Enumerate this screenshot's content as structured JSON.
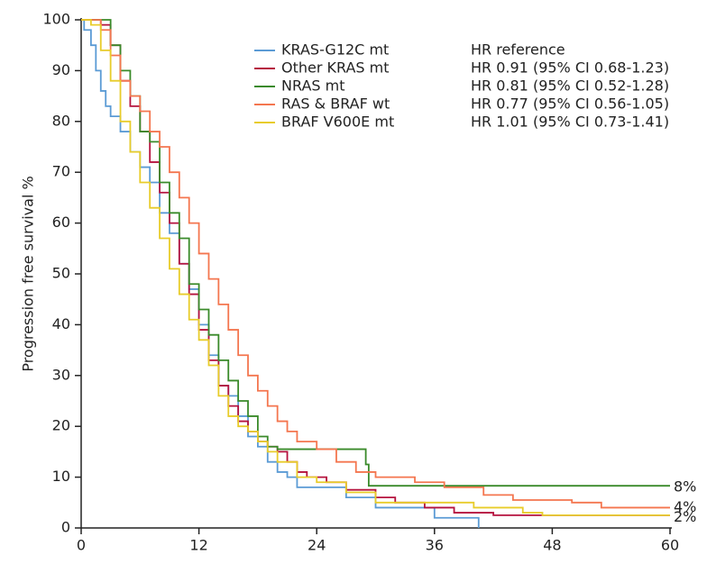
{
  "chart_data": {
    "type": "step",
    "ylabel": "Progression free survival %",
    "xlim": [
      0,
      60
    ],
    "xticks": [
      0,
      12,
      24,
      36,
      48,
      60
    ],
    "ylim": [
      0,
      100
    ],
    "yticks": [
      0,
      10,
      20,
      30,
      40,
      50,
      60,
      70,
      80,
      90,
      100
    ],
    "annotations": [
      "HR reference",
      "HR 0.91 (95% CI 0.68-1.23)",
      "HR 0.81 (95% CI 0.52-1.28)",
      "HR 0.77 (95% CI 0.56-1.05)",
      "HR 1.01 (95% CI 0.73-1.41)"
    ],
    "end_labels": [
      {
        "value": 8,
        "label": "8%"
      },
      {
        "value": 4,
        "label": "4%"
      },
      {
        "value": 2,
        "label": "2%"
      }
    ],
    "series": [
      {
        "name": "KRAS-G12C mt",
        "color": "#5b9bd5",
        "x": [
          0,
          0.3,
          1,
          1.5,
          2,
          2.5,
          3,
          4,
          5,
          6,
          7,
          8,
          9,
          10,
          11,
          12,
          13,
          14,
          15,
          16,
          17,
          18,
          19,
          20,
          21,
          22,
          27,
          30,
          36,
          40.5
        ],
        "values": [
          100,
          98,
          95,
          90,
          86,
          83,
          81,
          78,
          74,
          71,
          68,
          62,
          58,
          52,
          47,
          40,
          34,
          28,
          26,
          22,
          18,
          16,
          13,
          11,
          10,
          8,
          6,
          4,
          2,
          0
        ]
      },
      {
        "name": "Other KRAS mt",
        "color": "#b5123e",
        "x": [
          0,
          2,
          3,
          4,
          5,
          6,
          7,
          8,
          9,
          10,
          11,
          12,
          13,
          14,
          15,
          16,
          17,
          18,
          19,
          20,
          21,
          22,
          23,
          25,
          27,
          30,
          32,
          35,
          38,
          42,
          60
        ],
        "values": [
          100,
          99,
          95,
          88,
          83,
          78,
          72,
          66,
          60,
          52,
          46,
          39,
          33,
          28,
          24,
          21,
          19,
          17,
          16,
          15,
          13,
          11,
          10,
          9,
          7.5,
          6,
          5,
          4,
          3,
          2.5,
          2.5
        ]
      },
      {
        "name": "NRAS mt",
        "color": "#3a8a2a",
        "x": [
          0,
          3,
          4,
          5,
          6,
          7,
          8,
          9,
          10,
          11,
          12,
          13,
          14,
          15,
          16,
          17,
          18,
          19,
          20,
          29,
          29.3,
          60
        ],
        "values": [
          100,
          95,
          90,
          85,
          78,
          76,
          68,
          62,
          57,
          48,
          43,
          38,
          33,
          29,
          25,
          22,
          18,
          16,
          15.5,
          12.5,
          8.3,
          8.3
        ]
      },
      {
        "name": "RAS & BRAF wt",
        "color": "#f4764f",
        "x": [
          0,
          2,
          3,
          4,
          5,
          6,
          7,
          8,
          9,
          10,
          11,
          12,
          13,
          14,
          15,
          16,
          17,
          18,
          19,
          20,
          21,
          22,
          24,
          26,
          28,
          30,
          34,
          37,
          41,
          44,
          50,
          53,
          60
        ],
        "values": [
          100,
          98,
          93,
          88,
          85,
          82,
          78,
          75,
          70,
          65,
          60,
          54,
          49,
          44,
          39,
          34,
          30,
          27,
          24,
          21,
          19,
          17,
          15.5,
          13,
          11,
          10,
          9,
          8,
          6.5,
          5.5,
          5,
          4,
          4
        ]
      },
      {
        "name": "BRAF V600E mt",
        "color": "#e8cc2a",
        "x": [
          0,
          1,
          2,
          3,
          4,
          5,
          6,
          7,
          8,
          9,
          10,
          11,
          12,
          13,
          14,
          15,
          16,
          17,
          18,
          19,
          20,
          22,
          24,
          27,
          30,
          36,
          40,
          45,
          47,
          60
        ],
        "values": [
          100,
          99,
          94,
          88,
          80,
          74,
          68,
          63,
          57,
          51,
          46,
          41,
          37,
          32,
          26,
          22,
          20,
          19,
          17,
          15,
          13,
          10,
          9,
          7,
          5,
          5,
          4,
          3,
          2.5,
          2.5
        ]
      }
    ]
  }
}
